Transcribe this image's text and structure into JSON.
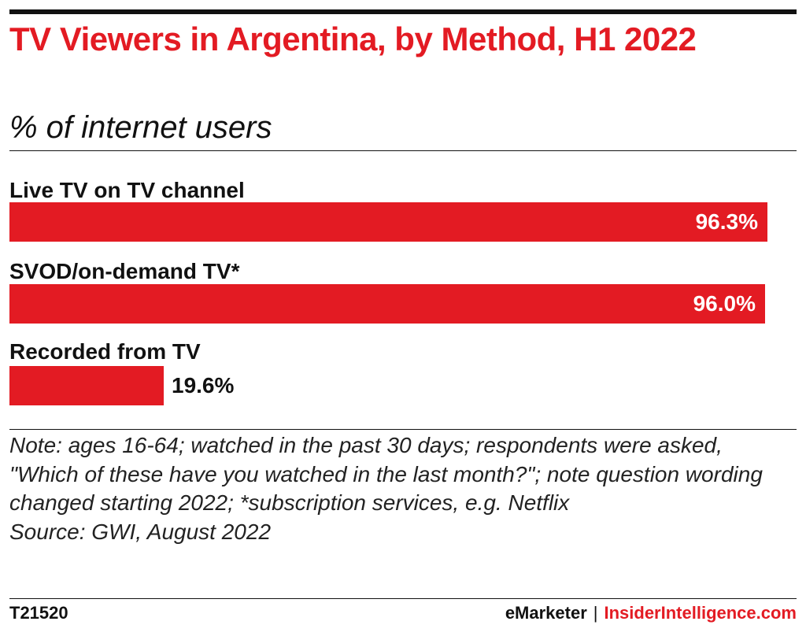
{
  "chart_data": {
    "type": "bar",
    "orientation": "horizontal",
    "title": "TV Viewers in Argentina, by Method, H1 2022",
    "subtitle": "% of internet users",
    "categories": [
      "Live TV on TV channel",
      "SVOD/on-demand TV*",
      "Recorded from TV"
    ],
    "values": [
      96.3,
      96.0,
      19.6
    ],
    "value_labels": [
      "96.3%",
      "96.0%",
      "19.6%"
    ],
    "xlim": [
      0,
      100
    ],
    "grid": false,
    "legend": "none",
    "bar_color": "#e31b23"
  },
  "notes": {
    "note_label": "Note:",
    "note_text": " ages 16-64; watched in the past 30 days; respondents were asked, \"Which of these have you watched in the last month?\"; note question wording changed starting 2022; *subscription services, e.g. Netflix",
    "source": "Source: GWI, August 2022"
  },
  "footer": {
    "chart_id": "T21520",
    "brand": "eMarketer",
    "separator": "|",
    "site": "InsiderIntelligence.com"
  },
  "colors": {
    "accent": "#e31b23",
    "text": "#111111"
  }
}
